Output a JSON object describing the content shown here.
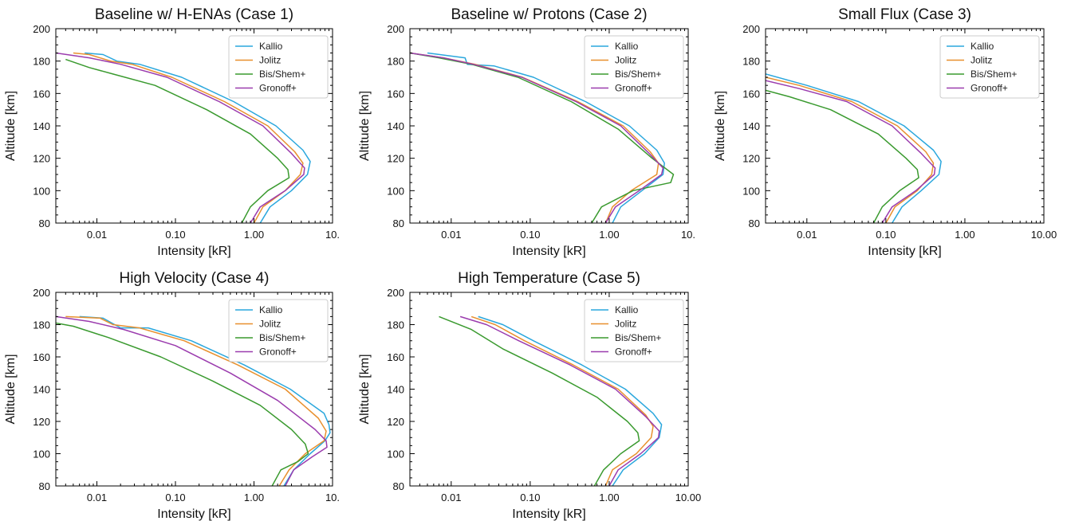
{
  "colors": {
    "Kallio": "#2aa7dd",
    "Jolitz": "#e8902e",
    "Bis/Shem+": "#3a9a2f",
    "Gronoff+": "#9b3cae"
  },
  "chart_data": [
    {
      "type": "line",
      "title": "Baseline w/ H-ENAs (Case 1)",
      "xlabel": "Intensity [kR]",
      "ylabel": "Altitude [km]",
      "xscale": "log",
      "xlim": [
        0.003,
        10
      ],
      "ylim": [
        80,
        200
      ],
      "xticklabels": [
        "0.01",
        "0.10",
        "1.00",
        "10."
      ],
      "yticklabels": [
        "80",
        "100",
        "120",
        "140",
        "160",
        "180",
        "200"
      ],
      "legend": "top-right",
      "series": [
        {
          "name": "Kallio",
          "x": [
            1.2,
            1.6,
            3.0,
            4.8,
            5.2,
            4.2,
            1.9,
            0.55,
            0.12,
            0.035,
            0.018,
            0.012,
            0.007
          ],
          "y": [
            80,
            90,
            100,
            110,
            118,
            125,
            140,
            155,
            170,
            178,
            180,
            184,
            185
          ]
        },
        {
          "name": "Jolitz",
          "x": [
            1.0,
            1.3,
            2.5,
            3.9,
            4.2,
            3.3,
            1.5,
            0.42,
            0.09,
            0.028,
            0.015,
            0.008,
            0.005
          ],
          "y": [
            80,
            90,
            100,
            110,
            117,
            124,
            140,
            155,
            170,
            178,
            180,
            184,
            185
          ]
        },
        {
          "name": "Bis/Shem+",
          "x": [
            0.7,
            0.9,
            1.5,
            2.8,
            2.7,
            2.0,
            0.9,
            0.25,
            0.055,
            0.016,
            0.008,
            0.004
          ],
          "y": [
            80,
            90,
            100,
            108,
            113,
            120,
            135,
            150,
            165,
            172,
            176,
            181
          ]
        },
        {
          "name": "Gronoff+",
          "x": [
            0.9,
            1.2,
            2.5,
            4.3,
            4.4,
            3.0,
            1.3,
            0.36,
            0.078,
            0.02,
            0.008,
            0.003
          ],
          "y": [
            80,
            90,
            100,
            110,
            114,
            123,
            140,
            155,
            170,
            178,
            182,
            185
          ]
        }
      ]
    },
    {
      "type": "line",
      "title": "Baseline w/ Protons (Case 2)",
      "xlabel": "Intensity [kR]",
      "ylabel": "Altitude [km]",
      "xscale": "log",
      "xlim": [
        0.003,
        10
      ],
      "ylim": [
        80,
        200
      ],
      "xticklabels": [
        "0.01",
        "0.10",
        "1.00",
        "10."
      ],
      "yticklabels": [
        "80",
        "100",
        "120",
        "140",
        "160",
        "180",
        "200"
      ],
      "legend": "top-right",
      "series": [
        {
          "name": "Kallio",
          "x": [
            1.1,
            1.4,
            2.6,
            4.8,
            5.0,
            4.0,
            1.8,
            0.5,
            0.11,
            0.035,
            0.016,
            0.015,
            0.005
          ],
          "y": [
            80,
            90,
            100,
            110,
            117,
            125,
            140,
            155,
            170,
            177,
            178,
            182,
            185
          ]
        },
        {
          "name": "Jolitz",
          "x": [
            0.9,
            1.1,
            1.9,
            4.0,
            4.2,
            3.3,
            1.5,
            0.4,
            0.08,
            0.02,
            0.008,
            0.003
          ],
          "y": [
            80,
            90,
            100,
            110,
            117,
            124,
            140,
            155,
            170,
            178,
            182,
            185
          ]
        },
        {
          "name": "Bis/Shem+",
          "x": [
            0.6,
            0.8,
            2.0,
            6.0,
            6.5,
            3.5,
            1.3,
            0.33,
            0.07,
            0.018,
            0.007,
            0.003
          ],
          "y": [
            80,
            90,
            100,
            105,
            110,
            120,
            138,
            155,
            170,
            178,
            182,
            185
          ]
        },
        {
          "name": "Gronoff+",
          "x": [
            0.9,
            1.2,
            2.4,
            4.6,
            4.8,
            3.2,
            1.4,
            0.38,
            0.078,
            0.019,
            0.008,
            0.003
          ],
          "y": [
            80,
            90,
            100,
            110,
            114,
            123,
            140,
            155,
            170,
            178,
            182,
            185
          ]
        }
      ]
    },
    {
      "type": "line",
      "title": "Small Flux (Case 3)",
      "xlabel": "Intensity [kR]",
      "ylabel": "Altitude [km]",
      "xscale": "log",
      "xlim": [
        0.003,
        10
      ],
      "ylim": [
        80,
        200
      ],
      "xticklabels": [
        "0.01",
        "0.10",
        "1.00",
        "10.00"
      ],
      "yticklabels": [
        "80",
        "100",
        "120",
        "140",
        "160",
        "180",
        "200"
      ],
      "legend": "top-right",
      "series": [
        {
          "name": "Kallio",
          "x": [
            0.12,
            0.16,
            0.28,
            0.47,
            0.5,
            0.4,
            0.17,
            0.045,
            0.01,
            0.003
          ],
          "y": [
            80,
            90,
            100,
            110,
            118,
            125,
            140,
            155,
            165,
            172
          ]
        },
        {
          "name": "Jolitz",
          "x": [
            0.1,
            0.13,
            0.25,
            0.38,
            0.4,
            0.32,
            0.14,
            0.037,
            0.008,
            0.003
          ],
          "y": [
            80,
            90,
            100,
            110,
            117,
            124,
            140,
            155,
            165,
            170
          ]
        },
        {
          "name": "Bis/Shem+",
          "x": [
            0.07,
            0.09,
            0.15,
            0.26,
            0.25,
            0.18,
            0.08,
            0.02,
            0.006,
            0.003
          ],
          "y": [
            80,
            90,
            100,
            108,
            113,
            120,
            135,
            150,
            158,
            162
          ]
        },
        {
          "name": "Gronoff+",
          "x": [
            0.09,
            0.12,
            0.24,
            0.41,
            0.42,
            0.28,
            0.12,
            0.032,
            0.008,
            0.003
          ],
          "y": [
            80,
            90,
            100,
            110,
            114,
            123,
            140,
            155,
            163,
            168
          ]
        }
      ]
    },
    {
      "type": "line",
      "title": "High Velocity (Case 4)",
      "xlabel": "Intensity [kR]",
      "ylabel": "Altitude [km]",
      "xscale": "log",
      "xlim": [
        0.003,
        10
      ],
      "ylim": [
        80,
        200
      ],
      "xticklabels": [
        "0.01",
        "0.10",
        "1.00",
        "10."
      ],
      "yticklabels": [
        "80",
        "100",
        "120",
        "140",
        "160",
        "180",
        "200"
      ],
      "legend": "top-right",
      "series": [
        {
          "name": "Kallio",
          "x": [
            2.4,
            3.2,
            5.2,
            8.0,
            9.3,
            9.0,
            7.8,
            2.9,
            0.75,
            0.16,
            0.045,
            0.02,
            0.012,
            0.006
          ],
          "y": [
            80,
            90,
            100,
            108,
            113,
            118,
            125,
            140,
            155,
            170,
            178,
            178,
            184,
            185
          ]
        },
        {
          "name": "Jolitz",
          "x": [
            2.1,
            2.8,
            4.5,
            7.8,
            8.3,
            6.6,
            2.5,
            0.62,
            0.13,
            0.035,
            0.016,
            0.011,
            0.004
          ],
          "y": [
            80,
            90,
            100,
            108,
            114,
            122,
            140,
            155,
            170,
            178,
            180,
            184,
            185
          ]
        },
        {
          "name": "Bis/Shem+",
          "x": [
            1.7,
            2.2,
            3.6,
            4.9,
            4.5,
            3.0,
            1.2,
            0.3,
            0.065,
            0.014,
            0.005,
            0.003
          ],
          "y": [
            80,
            90,
            95,
            100,
            106,
            115,
            130,
            145,
            160,
            172,
            179,
            181
          ]
        },
        {
          "name": "Gronoff+",
          "x": [
            2.5,
            3.2,
            5.5,
            8.5,
            8.3,
            6.0,
            2.0,
            0.5,
            0.1,
            0.022,
            0.008,
            0.003
          ],
          "y": [
            80,
            90,
            98,
            104,
            108,
            115,
            133,
            150,
            167,
            177,
            182,
            185
          ]
        }
      ]
    },
    {
      "type": "line",
      "title": "High Temperature (Case 5)",
      "xlabel": "Intensity [kR]",
      "ylabel": "Altitude [km]",
      "xscale": "log",
      "xlim": [
        0.003,
        10
      ],
      "ylim": [
        80,
        200
      ],
      "xticklabels": [
        "0.01",
        "0.10",
        "1.00",
        "10.00"
      ],
      "yticklabels": [
        "80",
        "100",
        "120",
        "140",
        "160",
        "180",
        "200"
      ],
      "legend": "top-right",
      "series": [
        {
          "name": "Kallio",
          "x": [
            1.1,
            1.5,
            2.8,
            4.3,
            4.6,
            3.6,
            1.6,
            0.45,
            0.11,
            0.045,
            0.022
          ],
          "y": [
            80,
            90,
            100,
            110,
            118,
            125,
            140,
            155,
            170,
            180,
            185
          ]
        },
        {
          "name": "Jolitz",
          "x": [
            0.9,
            1.1,
            2.2,
            3.4,
            3.6,
            2.9,
            1.3,
            0.35,
            0.085,
            0.036,
            0.018
          ],
          "y": [
            80,
            90,
            100,
            110,
            117,
            124,
            140,
            155,
            170,
            180,
            185
          ]
        },
        {
          "name": "Bis/Shem+",
          "x": [
            0.65,
            0.85,
            1.4,
            2.4,
            2.3,
            1.7,
            0.7,
            0.19,
            0.045,
            0.018,
            0.007
          ],
          "y": [
            80,
            90,
            100,
            108,
            113,
            120,
            135,
            150,
            165,
            177,
            185
          ]
        },
        {
          "name": "Gronoff+",
          "x": [
            1.0,
            1.3,
            2.5,
            4.2,
            4.3,
            2.9,
            1.2,
            0.32,
            0.072,
            0.028,
            0.013
          ],
          "y": [
            80,
            90,
            100,
            110,
            114,
            123,
            140,
            155,
            170,
            180,
            185
          ]
        }
      ]
    }
  ]
}
